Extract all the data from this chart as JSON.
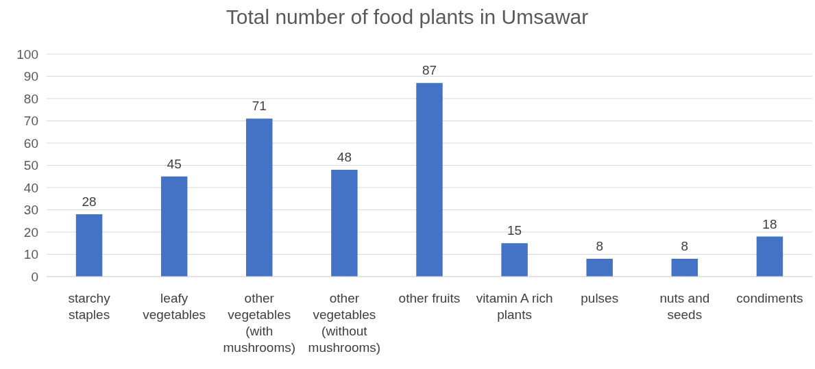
{
  "chart_data": {
    "type": "bar",
    "title": "Total number of food plants in Umsawar",
    "categories": [
      "starchy staples",
      "leafy vegetables",
      "other vegetables (with mushrooms)",
      "other vegetables (without mushrooms)",
      "other fruits",
      "vitamin A rich plants",
      "pulses",
      "nuts and seeds",
      "condiments"
    ],
    "values": [
      28,
      45,
      71,
      48,
      87,
      15,
      8,
      8,
      18
    ],
    "color": "#4472c4",
    "ylim": [
      0,
      100
    ],
    "yticks": [
      0,
      10,
      20,
      30,
      40,
      50,
      60,
      70,
      80,
      90,
      100
    ],
    "grid": "y",
    "data_labels": true
  }
}
